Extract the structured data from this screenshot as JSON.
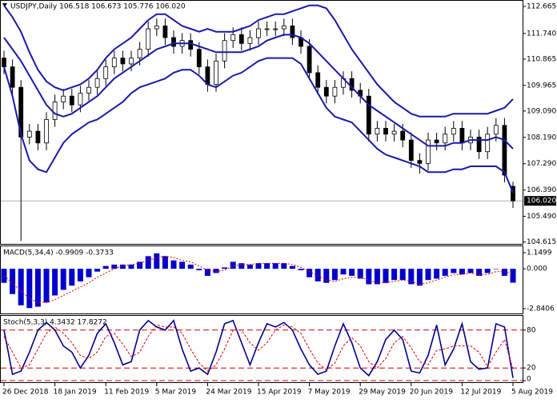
{
  "chart_data": [
    {
      "type": "candlestick",
      "title": "USDJPY,Daily  106.518 106.673 105.776 106.020",
      "categories": [
        "26 Dec 2018",
        null,
        null,
        null,
        null,
        null,
        "18 Jan 2019",
        null,
        null,
        null,
        null,
        null,
        "11 Feb 2019",
        null,
        null,
        null,
        null,
        null,
        "5 Mar 2019",
        null,
        null,
        null,
        null,
        null,
        "24 Mar 2019",
        null,
        null,
        null,
        null,
        null,
        "15 Apr 2019",
        null,
        null,
        null,
        null,
        null,
        "7 May 2019",
        null,
        null,
        null,
        null,
        null,
        "29 May 2019",
        null,
        null,
        null,
        null,
        null,
        "20 Jun 2019",
        null,
        null,
        null,
        null,
        null,
        "12 Jul 2019",
        null,
        null,
        null,
        null,
        null,
        "5 Aug 2019"
      ],
      "open": [
        110.9,
        110.6,
        109.9,
        108.2,
        108.4,
        108.0,
        108.8,
        109.4,
        109.6,
        109.3,
        109.7,
        109.9,
        110.2,
        110.6,
        110.9,
        110.7,
        110.9,
        111.2,
        111.9,
        112.0,
        111.6,
        111.3,
        111.5,
        111.2,
        110.6,
        110.0,
        110.8,
        111.5,
        111.7,
        111.4,
        111.6,
        111.9,
        111.9,
        111.9,
        112.0,
        111.6,
        111.3,
        110.4,
        109.9,
        109.6,
        109.9,
        110.2,
        109.8,
        109.6,
        108.3,
        108.5,
        108.3,
        108.4,
        108.1,
        107.4,
        107.3,
        108.1,
        108.0,
        108.3,
        108.5,
        108.0,
        108.2,
        107.7,
        108.3,
        108.6,
        106.518
      ],
      "high": [
        111.15,
        110.85,
        110.15,
        108.65,
        108.65,
        109.05,
        109.65,
        109.85,
        109.85,
        109.95,
        110.15,
        110.45,
        110.85,
        111.15,
        111.15,
        111.15,
        111.45,
        112.15,
        112.25,
        112.25,
        111.85,
        111.75,
        111.75,
        111.45,
        110.85,
        111.05,
        111.75,
        111.95,
        111.95,
        111.85,
        112.15,
        112.15,
        112.15,
        112.25,
        112.25,
        111.85,
        111.55,
        110.65,
        110.15,
        110.15,
        110.45,
        110.45,
        110.05,
        109.85,
        108.75,
        108.75,
        108.65,
        108.65,
        108.35,
        107.65,
        108.35,
        108.35,
        108.55,
        108.75,
        108.75,
        108.45,
        108.45,
        108.55,
        108.85,
        108.85,
        106.673
      ],
      "low": [
        110.35,
        109.65,
        104.65,
        107.95,
        107.75,
        107.75,
        108.55,
        109.15,
        109.05,
        109.05,
        109.45,
        109.65,
        109.95,
        110.35,
        110.45,
        110.45,
        110.65,
        110.95,
        111.65,
        111.35,
        111.05,
        111.05,
        110.95,
        110.35,
        109.75,
        109.75,
        110.55,
        111.25,
        111.15,
        111.15,
        111.35,
        111.65,
        111.65,
        111.65,
        111.35,
        111.05,
        110.15,
        109.65,
        109.35,
        109.35,
        109.65,
        109.55,
        109.35,
        108.05,
        108.05,
        108.05,
        108.05,
        107.85,
        107.15,
        106.95,
        107.05,
        107.75,
        107.75,
        108.05,
        107.75,
        107.75,
        107.45,
        107.45,
        108.05,
        106.65,
        105.776
      ],
      "close": [
        110.6,
        109.9,
        108.2,
        108.4,
        108.0,
        108.8,
        109.4,
        109.6,
        109.3,
        109.7,
        109.9,
        110.2,
        110.6,
        110.9,
        110.7,
        110.9,
        111.2,
        111.9,
        112.0,
        111.6,
        111.3,
        111.5,
        111.2,
        110.6,
        110.0,
        110.8,
        111.5,
        111.7,
        111.4,
        111.6,
        111.9,
        111.9,
        111.9,
        112.0,
        111.6,
        111.3,
        110.4,
        109.9,
        109.6,
        109.9,
        110.2,
        109.8,
        109.6,
        108.3,
        108.5,
        108.3,
        108.4,
        108.1,
        107.4,
        107.3,
        108.1,
        108.0,
        108.3,
        108.5,
        108.0,
        108.2,
        107.7,
        108.3,
        108.6,
        106.9,
        106.02
      ],
      "bull_color": "#ffffff",
      "bear_color": "#000000",
      "wick_color": "#000000",
      "bands": [
        {
          "color": "#1a1aa8",
          "values": [
            112.7,
            112.3,
            111.8,
            111.1,
            110.5,
            110.1,
            109.9,
            109.8,
            109.9,
            110.0,
            110.2,
            110.5,
            110.9,
            111.2,
            111.4,
            111.6,
            111.9,
            112.2,
            112.4,
            112.4,
            112.2,
            112.0,
            111.9,
            111.8,
            111.9,
            111.8,
            111.8,
            111.8,
            111.9,
            112.0,
            112.2,
            112.3,
            112.4,
            112.4,
            112.5,
            112.6,
            112.7,
            112.7,
            112.6,
            112.2,
            111.7,
            111.2,
            110.8,
            110.4,
            110.0,
            109.7,
            109.4,
            109.2,
            109.0,
            108.9,
            108.9,
            108.9,
            108.9,
            109.0,
            109.0,
            109.0,
            109.0,
            109.0,
            109.1,
            109.2,
            109.5
          ]
        },
        {
          "color": "#1a1aa8",
          "values": [
            111.6,
            111.2,
            110.8,
            110.3,
            109.8,
            109.3,
            109.0,
            108.9,
            109.0,
            109.2,
            109.4,
            109.6,
            109.9,
            110.2,
            110.4,
            110.6,
            110.8,
            111.0,
            111.2,
            111.3,
            111.4,
            111.4,
            111.4,
            111.3,
            111.2,
            111.1,
            111.1,
            111.1,
            111.1,
            111.2,
            111.3,
            111.5,
            111.6,
            111.7,
            111.7,
            111.6,
            111.4,
            111.1,
            110.8,
            110.5,
            110.2,
            109.9,
            109.6,
            109.3,
            109.1,
            108.9,
            108.7,
            108.5,
            108.3,
            108.1,
            107.9,
            107.9,
            107.9,
            108.0,
            108.0,
            108.1,
            108.1,
            108.1,
            108.2,
            108.1,
            107.8
          ]
        },
        {
          "color": "#1a1aa8",
          "values": [
            110.6,
            109.6,
            108.3,
            107.4,
            107.1,
            107.0,
            107.5,
            108.0,
            108.3,
            108.5,
            108.7,
            108.8,
            109.0,
            109.2,
            109.4,
            109.7,
            109.9,
            110.0,
            110.1,
            110.2,
            110.4,
            110.5,
            110.5,
            110.3,
            110.0,
            109.9,
            110.1,
            110.3,
            110.4,
            110.6,
            110.8,
            110.9,
            110.9,
            110.9,
            110.9,
            110.7,
            110.2,
            109.7,
            109.2,
            108.9,
            108.8,
            108.7,
            108.4,
            108.1,
            107.8,
            107.6,
            107.5,
            107.4,
            107.3,
            107.2,
            107.0,
            107.0,
            107.0,
            107.1,
            107.1,
            107.2,
            107.2,
            107.2,
            107.2,
            107.0,
            106.3
          ]
        }
      ],
      "ylim": [
        104.55,
        112.83
      ],
      "yticks": [
        112.665,
        {
          "value": 111.74,
          "label": "111.740"
        },
        110.865,
        109.965,
        {
          "value": 109.09,
          "label": "109.090"
        },
        {
          "value": 108.19,
          "label": "108.190"
        },
        {
          "value": 107.29,
          "label": "107.290"
        },
        {
          "value": 106.39,
          "label": "106.390"
        },
        {
          "value": 105.49,
          "label": "105.490"
        },
        104.615
      ],
      "last_price": {
        "value": 106.02,
        "label": "106.020"
      },
      "last_price_color": "#000000"
    },
    {
      "type": "bar",
      "title": "MACD(5,34,4) -0.9909 -0.3733",
      "values": [
        -1.0,
        -1.8,
        -2.6,
        -2.8,
        -2.7,
        -2.4,
        -1.9,
        -1.5,
        -1.2,
        -0.9,
        -0.6,
        -0.2,
        0.2,
        0.3,
        0.3,
        0.3,
        0.5,
        0.9,
        1.1,
        0.9,
        0.6,
        0.5,
        0.3,
        -0.1,
        -0.5,
        -0.3,
        0.1,
        0.5,
        0.4,
        0.3,
        0.4,
        0.4,
        0.4,
        0.4,
        0.2,
        -0.1,
        -0.6,
        -0.9,
        -1.0,
        -0.8,
        -0.4,
        -0.5,
        -0.7,
        -1.1,
        -1.1,
        -1.0,
        -0.8,
        -0.8,
        -1.1,
        -1.2,
        -0.8,
        -0.7,
        -0.5,
        -0.3,
        -0.4,
        -0.3,
        -0.5,
        -0.3,
        0.0,
        -0.5,
        -0.9909
      ],
      "color": "#0000cc",
      "signal": {
        "color": "#e00000",
        "values": [
          -0.5,
          -1.0,
          -1.6,
          -2.1,
          -2.4,
          -2.4,
          -2.2,
          -1.9,
          -1.6,
          -1.3,
          -1.0,
          -0.6,
          -0.3,
          0.0,
          0.2,
          0.3,
          0.4,
          0.6,
          0.8,
          0.9,
          0.8,
          0.6,
          0.5,
          0.2,
          -0.1,
          -0.2,
          -0.1,
          0.2,
          0.3,
          0.3,
          0.4,
          0.4,
          0.4,
          0.4,
          0.3,
          0.1,
          -0.2,
          -0.5,
          -0.8,
          -0.9,
          -0.7,
          -0.6,
          -0.6,
          -0.8,
          -1.0,
          -1.0,
          -0.9,
          -0.8,
          -0.9,
          -1.1,
          -1.0,
          -0.8,
          -0.6,
          -0.4,
          -0.4,
          -0.3,
          -0.4,
          -0.4,
          -0.2,
          -0.2,
          -0.3733
        ]
      },
      "ylim": [
        -2.8406,
        1.1499
      ],
      "yticks": [
        1.1499,
        {
          "value": 0,
          "label": "0.000"
        },
        -2.8406
      ]
    },
    {
      "type": "line",
      "title": "Stoch(5,3,3) 4.3432 17.8272",
      "series": [
        {
          "color": "#00008b",
          "dashed": false,
          "values": [
            80,
            10,
            15,
            45,
            80,
            92,
            80,
            55,
            45,
            20,
            40,
            75,
            90,
            60,
            25,
            30,
            80,
            95,
            85,
            80,
            95,
            50,
            15,
            20,
            10,
            45,
            90,
            95,
            60,
            25,
            60,
            90,
            85,
            92,
            80,
            50,
            25,
            10,
            15,
            55,
            90,
            60,
            20,
            8,
            30,
            65,
            80,
            65,
            15,
            12,
            40,
            88,
            25,
            50,
            90,
            30,
            18,
            20,
            90,
            85,
            4.3432
          ]
        },
        {
          "color": "#e00000",
          "dashed": true,
          "values": [
            70,
            45,
            20,
            25,
            50,
            75,
            85,
            75,
            60,
            40,
            35,
            45,
            70,
            75,
            58,
            38,
            45,
            70,
            88,
            85,
            85,
            75,
            50,
            28,
            15,
            25,
            50,
            80,
            80,
            60,
            48,
            60,
            80,
            88,
            85,
            75,
            50,
            28,
            17,
            28,
            55,
            68,
            55,
            30,
            20,
            35,
            60,
            70,
            52,
            30,
            25,
            48,
            50,
            55,
            55,
            55,
            45,
            22,
            45,
            65,
            17.8272
          ]
        }
      ],
      "ylim": [
        0,
        100
      ],
      "yticks": [
        80,
        20,
        0
      ],
      "grid": true,
      "grid_color": "#cc0000"
    }
  ]
}
